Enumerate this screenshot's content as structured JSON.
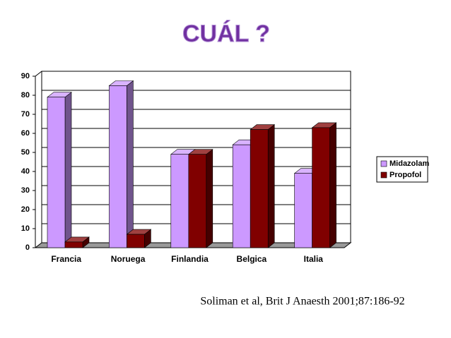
{
  "chart_data": {
    "type": "bar3d",
    "title": "CUÁL ?",
    "categories": [
      "Francia",
      "Noruega",
      "Finlandia",
      "Belgica",
      "Italia"
    ],
    "series": [
      {
        "name": "Midazolam",
        "color": "#cc99ff",
        "values": [
          79,
          85,
          49,
          54,
          39
        ]
      },
      {
        "name": "Propofol",
        "color": "#800000",
        "values": [
          3,
          7,
          49,
          62,
          63
        ]
      }
    ],
    "ylim": [
      0,
      90
    ],
    "yticks": [
      0,
      10,
      20,
      30,
      40,
      50,
      60,
      70,
      80,
      90
    ],
    "grid": true,
    "legend": "right",
    "source": "Soliman et al, Brit J Anaesth 2001;87:186-92"
  }
}
